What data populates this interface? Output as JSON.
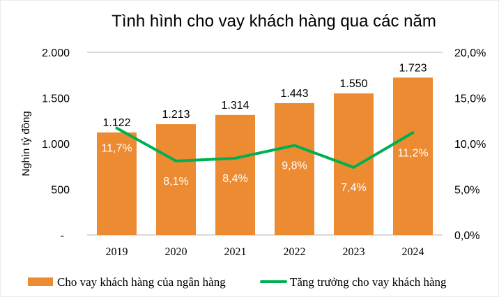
{
  "chart_data": {
    "type": "bar+line",
    "title": "Tình hình cho vay khách hàng qua các năm",
    "ylabel": "Nghìn tỷ đồng",
    "categories": [
      "2019",
      "2020",
      "2021",
      "2022",
      "2023",
      "2024"
    ],
    "series": [
      {
        "name": "Cho vay khách hàng của ngân hàng",
        "type": "bar",
        "axis": "left",
        "color": "#ED8B32",
        "values": [
          1122,
          1213,
          1314,
          1443,
          1550,
          1723
        ],
        "labels": [
          "1.122",
          "1.213",
          "1.314",
          "1.443",
          "1.550",
          "1.723"
        ]
      },
      {
        "name": "Tăng trưởng cho vay khách hàng",
        "type": "line",
        "axis": "right",
        "color": "#00B050",
        "values": [
          11.7,
          8.1,
          8.4,
          9.8,
          7.4,
          11.2
        ],
        "labels": [
          "11,7%",
          "8,1%",
          "8,4%",
          "9,8%",
          "7,4%",
          "11,2%"
        ]
      }
    ],
    "ylim": [
      0,
      2000
    ],
    "y2lim": [
      0,
      20
    ],
    "yticks": [
      "-",
      "500",
      "1.000",
      "1.500",
      "2.000"
    ],
    "y2ticks": [
      "0,0%",
      "5,0%",
      "10,0%",
      "15,0%",
      "20,0%"
    ],
    "legend": "bottom"
  }
}
